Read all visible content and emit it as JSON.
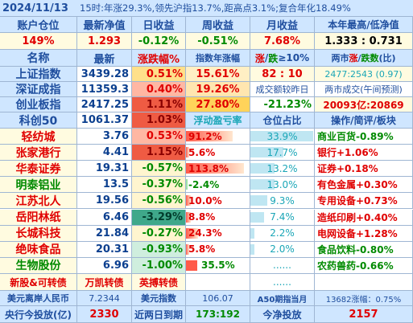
{
  "header": {
    "date": "2024/11/13",
    "summary": "15时:年涨29.3%,领先沪指13.7%,距高点3.1%;复合年化18.49%"
  },
  "account": {
    "h_position": "账户仓位",
    "h_nav": "最新净值",
    "h_day": "日收益",
    "h_week": "周收益",
    "h_month": "月收益",
    "h_hilo": "本年最高/低净值",
    "position": "149%",
    "nav": "1.293",
    "day": "-0.12%",
    "week": "-0.51%",
    "month": "7.68%",
    "hilo": "1.333 : 0.731"
  },
  "index_header": {
    "name": "名称",
    "latest": "最新",
    "change": "涨跌幅%",
    "year_change": "指数年涨幅",
    "ratio_up": "涨",
    "ratio_sep": "/",
    "ratio_down": "跌",
    "ratio_suffix": "≥10%",
    "count_pre": "两市",
    "count_up": "涨",
    "count_sep": "/",
    "count_down": "跌数",
    "count_suffix": "(比)"
  },
  "indices": [
    {
      "name": "上证指数",
      "latest": "3439.28",
      "change": "0.51%",
      "col4": "15.61%",
      "col5": "82 : 10",
      "col6": "2477:2543 (0.97)"
    },
    {
      "name": "深证成指",
      "latest": "11359.3",
      "change": "0.40%",
      "col4": "19.26%",
      "col5": "成交额较昨日",
      "col6": "两市成交(午间预测)"
    },
    {
      "name": "创业板指",
      "latest": "2417.25",
      "change": "1.11%",
      "col4": "27.80%",
      "col5": "-21.23%",
      "col6": "20093亿:20869"
    },
    {
      "name": "科创50",
      "latest": "1061.37",
      "change": "1.03%",
      "col4": "浮动盈亏率",
      "col5": "仓位占比",
      "col6": "操作/简评/板块"
    }
  ],
  "holdings": [
    {
      "name": "轻纺城",
      "price": "3.76",
      "change": "0.53%",
      "pnl": "91.2%",
      "weight": "33.9%",
      "sector": "商业百货-0.89%",
      "pnl_pct": 91.2,
      "w_pct": 33.9,
      "chg_val": 0.53
    },
    {
      "name": "张家港行",
      "price": "4.41",
      "change": "1.15%",
      "pnl": "5.6%",
      "weight": "17.7%",
      "sector": "银行+1.06%",
      "pnl_pct": 5.6,
      "w_pct": 17.7,
      "chg_val": 1.15
    },
    {
      "name": "华泰证券",
      "price": "19.31",
      "change": "-0.57%",
      "pnl": "113.8%",
      "weight": "13.2%",
      "sector": "证券+0.18%",
      "pnl_pct": 113.8,
      "w_pct": 13.2,
      "chg_val": -0.57
    },
    {
      "name": "明泰铝业",
      "price": "13.5",
      "change": "-0.37%",
      "pnl": "-2.4%",
      "weight": "13.0%",
      "sector": "有色金属+0.30%",
      "pnl_pct": -2.4,
      "w_pct": 13.0,
      "chg_val": -0.37
    },
    {
      "name": "江苏北人",
      "price": "19.56",
      "change": "-0.56%",
      "pnl": "10.0%",
      "weight": "9.3%",
      "sector": "专用设备+0.73%",
      "pnl_pct": 10.0,
      "w_pct": 9.3,
      "chg_val": -0.56
    },
    {
      "name": "岳阳林纸",
      "price": "6.46",
      "change": "-3.29%",
      "pnl": "8.8%",
      "weight": "7.4%",
      "sector": "造纸印刷+0.40%",
      "pnl_pct": 8.8,
      "w_pct": 7.4,
      "chg_val": -3.29
    },
    {
      "name": "长城科技",
      "price": "21.84",
      "change": "-0.27%",
      "pnl": "24.3%",
      "weight": "2.2%",
      "sector": "电网设备+1.28%",
      "pnl_pct": 24.3,
      "w_pct": 2.2,
      "chg_val": -0.27
    },
    {
      "name": "绝味食品",
      "price": "20.31",
      "change": "-0.93%",
      "pnl": "5.8%",
      "weight": "2.0%",
      "sector": "食品饮料-0.80%",
      "pnl_pct": 5.8,
      "w_pct": 2.0,
      "chg_val": -0.93
    },
    {
      "name": "生物股份",
      "price": "6.96",
      "change": "-1.00%",
      "pnl": "35.5%",
      "weight": "......",
      "sector": "农药兽药-0.66%",
      "pnl_pct": 35.5,
      "w_pct": 0,
      "chg_val": -1.0
    }
  ],
  "new_shares": {
    "label": "新股&可转债",
    "item1": "万凯转债",
    "item2": "英搏转债",
    "weight": "......"
  },
  "footer": {
    "fx_label": "美元离岸人民币",
    "fx_value": "7.2344",
    "dollar_label": "美元指数",
    "dollar_value": "106.07",
    "a50_label": "A50期指当月",
    "a50_value": "13682涨幅：0.75%",
    "flow_label": "央行今投放(亿)",
    "flow_value": "2330",
    "expire_label": "近两日到期",
    "expire_value": "173:192",
    "net_label": "今净投放",
    "net_value": "2157"
  },
  "colors": {
    "up": "#e00000",
    "down": "#008a00",
    "header_bg": "#cfe6ff",
    "title_blue": "#1f4e9e"
  }
}
